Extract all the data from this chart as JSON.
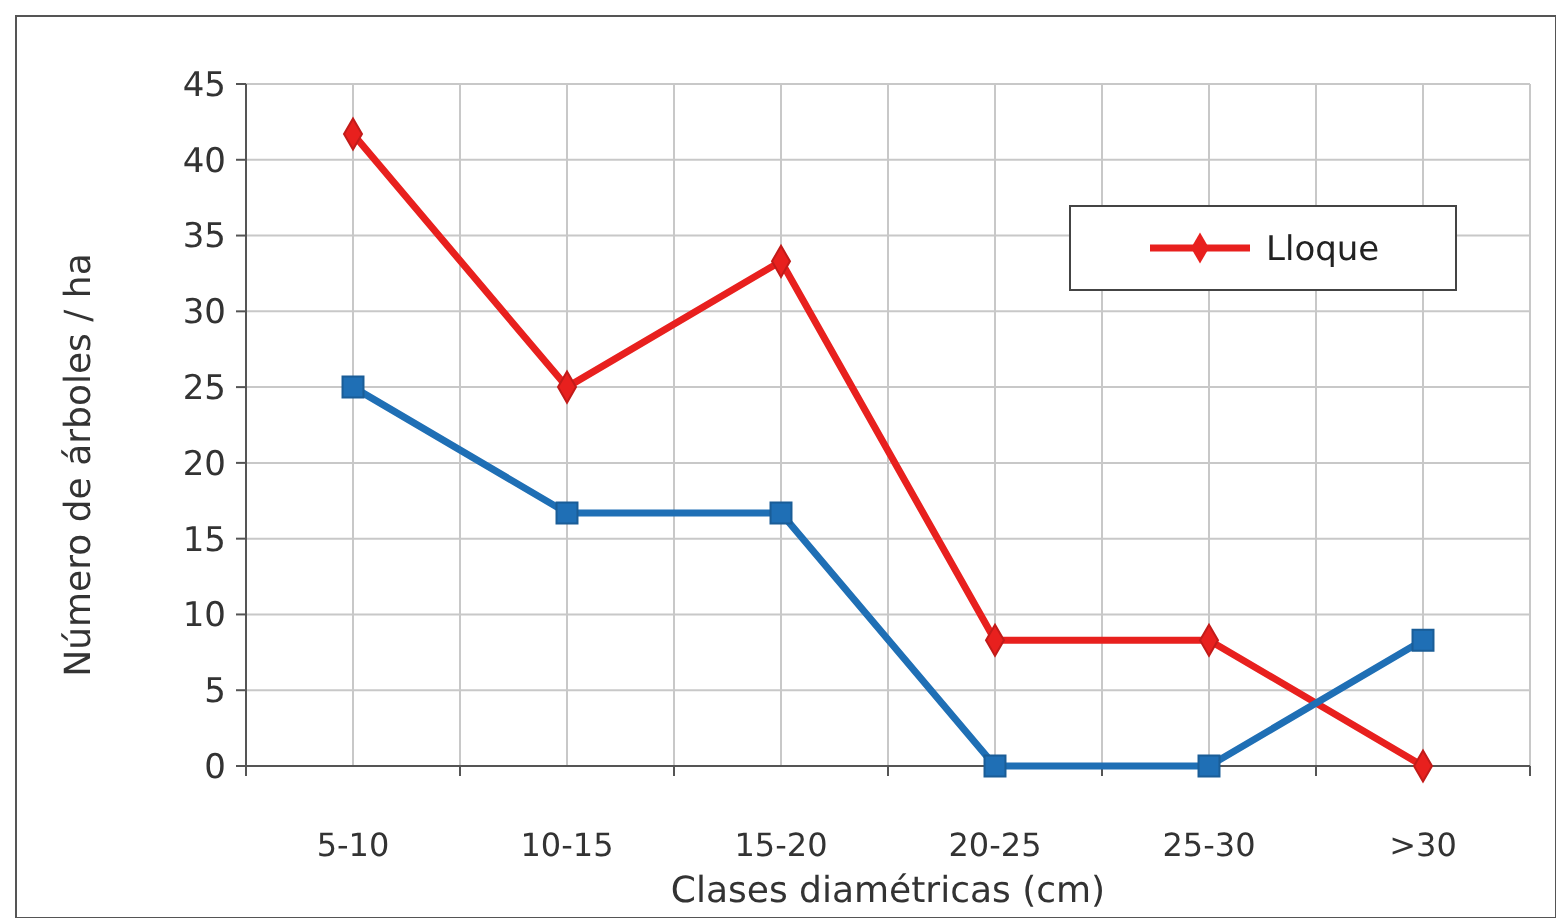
{
  "chart_data": {
    "type": "line",
    "xlabel": "Clases diamétricas (cm)",
    "ylabel": "Número de árboles / ha",
    "categories": [
      "5-10",
      "10-15",
      "15-20",
      "20-25",
      "25-30",
      ">30"
    ],
    "series": [
      {
        "name": "Lloque",
        "color": "#e8201e",
        "values": [
          41.7,
          25,
          33.3,
          8.3,
          8.3,
          0
        ],
        "marker": "diamond"
      },
      {
        "color": "#1f6fb5",
        "values": [
          25,
          16.7,
          16.7,
          0,
          0,
          8.3
        ],
        "marker": "square"
      }
    ],
    "ylim": [
      0,
      45
    ],
    "yticks": [
      0,
      5,
      10,
      15,
      20,
      25,
      30,
      35,
      40,
      45
    ],
    "grid": true,
    "legend": "top right"
  }
}
